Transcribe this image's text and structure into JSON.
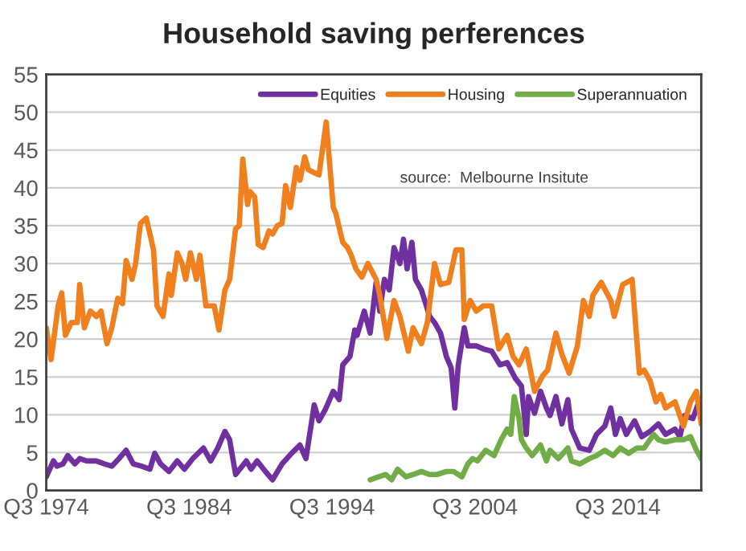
{
  "chart_data": {
    "type": "line",
    "title": "Household saving perferences",
    "annotations": [
      "source:  Melbourne Insitute"
    ],
    "xlim": [
      "1974-07",
      "2020-05"
    ],
    "xticks": [
      {
        "value": "1974-07",
        "label": "Q3 1974"
      },
      {
        "value": "1984-07",
        "label": "Q3 1984"
      },
      {
        "value": "1994-07",
        "label": "Q3 1994"
      },
      {
        "value": "2004-07",
        "label": "Q3 2004"
      },
      {
        "value": "2014-07",
        "label": "Q3 2014"
      }
    ],
    "ylim": [
      0,
      55
    ],
    "yticks": [
      0,
      5,
      10,
      15,
      20,
      25,
      30,
      35,
      40,
      45,
      50,
      55
    ],
    "grid": "y",
    "legend": "top right",
    "line_style": "solid",
    "marker": "none",
    "series": [
      {
        "name": "Equities",
        "color": "#7030a0",
        "x": [
          "1974-07",
          "1975-01",
          "1975-04",
          "1975-09",
          "1976-01",
          "1976-07",
          "1976-11",
          "1977-05",
          "1978-01",
          "1978-08",
          "1979-02",
          "1979-08",
          "1980-02",
          "1980-08",
          "1981-03",
          "1981-10",
          "1982-02",
          "1982-07",
          "1983-02",
          "1983-09",
          "1984-03",
          "1984-10",
          "1985-07",
          "1986-01",
          "1986-07",
          "1987-01",
          "1987-05",
          "1987-10",
          "1988-07",
          "1988-11",
          "1989-04",
          "1989-11",
          "1990-05",
          "1991-01",
          "1991-09",
          "1992-04",
          "1992-09",
          "1993-04",
          "1993-08",
          "1994-01",
          "1994-08",
          "1995-01",
          "1995-04",
          "1995-10",
          "1996-02",
          "1996-04",
          "1996-10",
          "1997-03",
          "1997-08",
          "1997-11",
          "1998-03",
          "1998-07",
          "1998-11",
          "1999-04",
          "1999-07",
          "1999-10",
          "2000-02",
          "2000-05",
          "2000-10",
          "2001-05",
          "2001-09",
          "2002-02",
          "2002-07",
          "2002-11",
          "2003-02",
          "2003-05",
          "2003-10",
          "2004-01",
          "2004-08",
          "2005-02",
          "2005-09",
          "2006-04",
          "2006-10",
          "2007-05",
          "2007-10",
          "2008-02",
          "2008-04",
          "2008-09",
          "2009-02",
          "2009-07",
          "2009-10",
          "2010-03",
          "2010-08",
          "2011-01",
          "2011-04",
          "2011-11",
          "2012-07",
          "2013-01",
          "2013-08",
          "2014-01",
          "2014-05",
          "2014-09",
          "2015-02",
          "2015-09",
          "2016-03",
          "2016-10",
          "2017-05",
          "2017-11",
          "2018-07",
          "2018-11",
          "2019-03",
          "2019-10",
          "2020-03",
          "2020-05"
        ],
        "values": [
          1.8,
          3.9,
          3.2,
          3.5,
          4.6,
          3.5,
          4.2,
          3.9,
          3.9,
          3.5,
          3.2,
          4.2,
          5.3,
          3.5,
          3.2,
          2.8,
          4.9,
          3.5,
          2.5,
          3.9,
          2.8,
          4.2,
          5.6,
          3.9,
          5.6,
          7.8,
          6.7,
          2.1,
          3.9,
          2.8,
          3.9,
          2.5,
          1.4,
          3.5,
          4.9,
          6.0,
          4.2,
          11.3,
          9.2,
          10.6,
          13.1,
          12.0,
          16.6,
          17.7,
          21.2,
          20.5,
          23.7,
          20.8,
          27.5,
          23.7,
          27.9,
          26.5,
          32.1,
          30.0,
          33.2,
          29.3,
          32.8,
          27.9,
          26.5,
          23.0,
          22.2,
          20.8,
          17.7,
          16.2,
          10.9,
          16.6,
          21.5,
          19.1,
          19.1,
          18.7,
          18.4,
          16.6,
          16.9,
          14.8,
          13.8,
          7.4,
          12.4,
          10.2,
          13.1,
          10.9,
          9.9,
          12.4,
          8.8,
          12.0,
          8.1,
          5.6,
          5.3,
          7.4,
          8.5,
          10.9,
          7.4,
          9.5,
          7.4,
          9.2,
          7.1,
          7.8,
          8.8,
          7.4,
          8.1,
          7.1,
          9.9,
          9.5,
          11.7,
          10.9
        ]
      },
      {
        "name": "Housing",
        "color": "#f07f1e",
        "x": [
          "1974-07",
          "1974-11",
          "1975-05",
          "1975-08",
          "1975-11",
          "1976-04",
          "1976-09",
          "1976-11",
          "1977-03",
          "1977-08",
          "1978-01",
          "1978-05",
          "1978-10",
          "1979-02",
          "1979-07",
          "1979-11",
          "1980-02",
          "1980-07",
          "1980-10",
          "1981-02",
          "1981-07",
          "1982-01",
          "1982-04",
          "1982-09",
          "1983-02",
          "1983-04",
          "1983-09",
          "1984-01",
          "1984-04",
          "1984-08",
          "1985-01",
          "1985-04",
          "1985-09",
          "1986-04",
          "1986-08",
          "1987-01",
          "1987-05",
          "1987-10",
          "1988-01",
          "1988-04",
          "1988-08",
          "1988-10",
          "1989-02",
          "1989-05",
          "1989-09",
          "1990-02",
          "1990-05",
          "1990-09",
          "1991-01",
          "1991-04",
          "1991-08",
          "1992-01",
          "1992-04",
          "1992-08",
          "1992-11",
          "1993-04",
          "1993-08",
          "1994-02",
          "1994-08",
          "1994-10",
          "1995-04",
          "1995-08",
          "1995-11",
          "1996-03",
          "1996-08",
          "1997-01",
          "1997-08",
          "1997-11",
          "1998-05",
          "1998-11",
          "1999-04",
          "1999-11",
          "2000-03",
          "2000-10",
          "2001-03",
          "2001-09",
          "2002-02",
          "2002-09",
          "2003-03",
          "2003-08",
          "2003-10",
          "2004-03",
          "2004-08",
          "2005-02",
          "2005-09",
          "2006-03",
          "2006-10",
          "2007-03",
          "2007-08",
          "2008-02",
          "2008-09",
          "2009-04",
          "2009-08",
          "2010-03",
          "2010-08",
          "2011-02",
          "2011-09",
          "2012-02",
          "2012-07",
          "2012-10",
          "2013-05",
          "2014-01",
          "2014-04",
          "2014-11",
          "2015-07",
          "2015-09",
          "2016-01",
          "2016-05",
          "2016-10",
          "2017-03",
          "2017-07",
          "2017-11",
          "2018-07",
          "2019-02",
          "2019-08",
          "2020-01",
          "2020-05"
        ],
        "values": [
          21.5,
          17.3,
          24.4,
          26.1,
          20.5,
          22.2,
          22.2,
          27.2,
          21.5,
          23.7,
          23.0,
          23.7,
          19.4,
          21.5,
          25.4,
          24.7,
          30.4,
          27.9,
          30.0,
          35.3,
          36.0,
          31.8,
          24.4,
          23.0,
          28.6,
          25.8,
          31.4,
          30.0,
          27.9,
          31.4,
          27.9,
          31.1,
          24.4,
          24.4,
          21.2,
          26.5,
          27.9,
          34.6,
          35.0,
          43.8,
          37.8,
          39.5,
          38.8,
          32.5,
          32.1,
          34.3,
          33.9,
          35.0,
          35.3,
          40.3,
          37.4,
          42.7,
          41.0,
          44.1,
          42.4,
          42.0,
          41.7,
          48.7,
          37.4,
          36.7,
          32.8,
          32.1,
          31.1,
          29.3,
          28.2,
          30.0,
          27.9,
          25.8,
          20.1,
          25.1,
          23.0,
          18.4,
          21.5,
          19.4,
          22.2,
          30.0,
          27.2,
          27.5,
          31.8,
          31.8,
          22.6,
          25.1,
          23.7,
          24.4,
          24.4,
          18.7,
          20.5,
          17.7,
          16.6,
          18.7,
          13.1,
          15.2,
          15.9,
          20.8,
          18.0,
          15.5,
          19.1,
          25.1,
          23.0,
          25.8,
          27.5,
          25.1,
          23.0,
          27.2,
          27.9,
          23.7,
          15.5,
          15.9,
          14.5,
          11.7,
          12.7,
          10.9,
          11.7,
          8.5,
          11.7,
          13.1,
          8.8
        ]
      },
      {
        "name": "Superannuation",
        "color": "#70ad47",
        "x": [
          "1997-03",
          "1997-10",
          "1998-04",
          "1998-09",
          "1999-02",
          "1999-09",
          "2000-03",
          "2000-10",
          "2001-05",
          "2001-11",
          "2002-07",
          "2003-01",
          "2003-08",
          "2004-01",
          "2004-05",
          "2004-09",
          "2005-04",
          "2005-11",
          "2006-05",
          "2006-10",
          "2007-01",
          "2007-04",
          "2007-08",
          "2007-10",
          "2008-02",
          "2008-07",
          "2009-02",
          "2009-07",
          "2009-10",
          "2010-05",
          "2011-01",
          "2011-04",
          "2011-11",
          "2012-07",
          "2013-01",
          "2013-08",
          "2014-03",
          "2014-09",
          "2015-04",
          "2015-11",
          "2016-05",
          "2017-01",
          "2017-05",
          "2017-11",
          "2018-07",
          "2019-02",
          "2019-08",
          "2020-01",
          "2020-05"
        ],
        "values": [
          1.4,
          1.8,
          2.1,
          1.4,
          2.8,
          1.8,
          2.1,
          2.5,
          2.1,
          2.1,
          2.5,
          2.5,
          1.8,
          3.5,
          4.2,
          3.9,
          5.3,
          4.6,
          6.7,
          8.1,
          7.4,
          12.4,
          9.5,
          6.7,
          5.6,
          4.6,
          6.0,
          3.9,
          5.3,
          4.2,
          5.6,
          3.9,
          3.5,
          4.2,
          4.6,
          5.3,
          4.6,
          5.6,
          4.9,
          5.6,
          5.6,
          7.4,
          6.7,
          6.4,
          6.7,
          6.7,
          7.1,
          5.3,
          4.2
        ]
      }
    ]
  }
}
